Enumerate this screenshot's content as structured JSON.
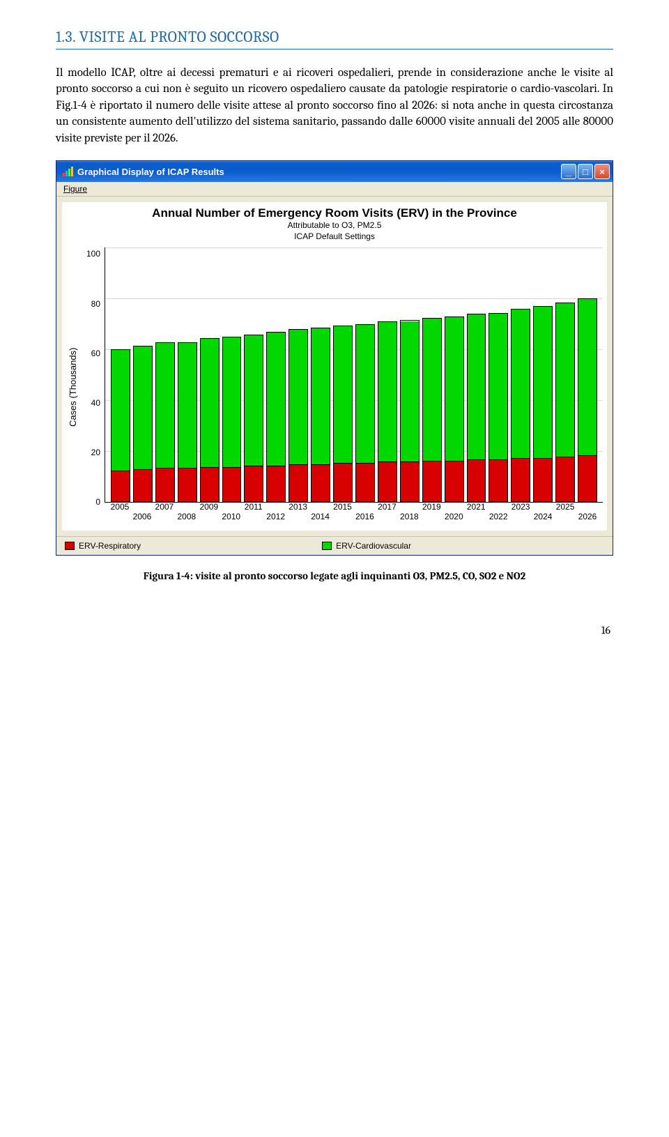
{
  "section": {
    "title": "1.3. VISITE AL PRONTO SOCCORSO",
    "paragraph": "Il modello ICAP, oltre ai decessi prematuri e ai ricoveri ospedalieri, prende in considerazione anche le visite al pronto soccorso a cui non è seguito un ricovero ospedaliero causate da patologie respiratorie o cardio-vascolari. In Fig.1-4 è riportato il numero delle visite attese al pronto soccorso fino al 2026: si nota anche in questa circostanza un consistente aumento dell'utilizzo del sistema sanitario, passando dalle 60000 visite annuali del 2005 alle 80000 visite previste per il 2026."
  },
  "window": {
    "title": "Graphical Display of ICAP Results",
    "menu": "Figure",
    "btn_min": "_",
    "btn_max": "□",
    "btn_close": "×"
  },
  "chart": {
    "title": "Annual Number of Emergency Room Visits (ERV) in the Province",
    "subtitle1": "Attributable to O3, PM2.5",
    "subtitle2": "ICAP Default Settings",
    "ylabel": "Cases (Thousands)",
    "ymax": 100,
    "yticks": [
      "100",
      "80",
      "60",
      "40",
      "20",
      "0"
    ],
    "grid_positions_pct": [
      0,
      20,
      40,
      60,
      80
    ],
    "years": [
      "2005",
      "2006",
      "2007",
      "2008",
      "2009",
      "2010",
      "2011",
      "2012",
      "2013",
      "2014",
      "2015",
      "2016",
      "2017",
      "2018",
      "2019",
      "2020",
      "2021",
      "2022",
      "2023",
      "2024",
      "2025",
      "2026"
    ],
    "series": {
      "red": [
        12,
        12.5,
        13,
        13,
        13.5,
        13.5,
        14,
        14,
        14.5,
        14.5,
        15,
        15,
        15.5,
        15.5,
        16,
        16,
        16.5,
        16.5,
        17,
        17,
        17.5,
        18
      ],
      "green": [
        48,
        49,
        50,
        50,
        51,
        51.5,
        52,
        53,
        53.5,
        54,
        54.5,
        55,
        55.5,
        56,
        56.5,
        57,
        57.5,
        58,
        59,
        60,
        61,
        62
      ]
    },
    "colors": {
      "green": "#00d800",
      "red": "#d80000",
      "grid": "#d9d9d9",
      "bg_panel": "#ece9d8"
    },
    "legend": [
      {
        "label": "ERV-Respiratory",
        "color": "#d80000"
      },
      {
        "label": "ERV-Cardiovascular",
        "color": "#00d800"
      }
    ]
  },
  "figure_caption": "Figura 1-4: visite al pronto soccorso legate agli inquinanti O3, PM2.5, CO, SO2 e NO2",
  "page_number": "16"
}
